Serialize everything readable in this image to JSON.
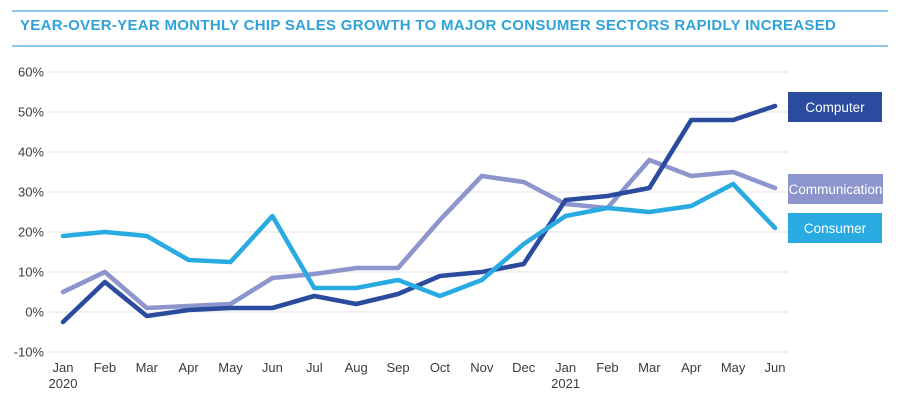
{
  "header": {
    "title": "YEAR-OVER-YEAR MONTHLY CHIP SALES GROWTH TO MAJOR CONSUMER SECTORS RAPIDLY INCREASED"
  },
  "chart_data": {
    "type": "line",
    "title": "YEAR-OVER-YEAR MONTHLY CHIP SALES GROWTH TO MAJOR CONSUMER SECTORS RAPIDLY INCREASED",
    "x_tick_labels": [
      "Jan",
      "Feb",
      "Mar",
      "Apr",
      "May",
      "Jun",
      "Jul",
      "Aug",
      "Sep",
      "Oct",
      "Nov",
      "Dec",
      "Jan",
      "Feb",
      "Mar",
      "Apr",
      "May",
      "Jun"
    ],
    "year_labels": [
      {
        "index": 0,
        "label": "2020"
      },
      {
        "index": 12,
        "label": "2021"
      }
    ],
    "series": [
      {
        "name": "Computer",
        "color": "#2b4b9f",
        "values": [
          -2.5,
          7.5,
          -1,
          0.5,
          1,
          1,
          4,
          2,
          4.5,
          9,
          10,
          12,
          28,
          29,
          31,
          48,
          48,
          51.5
        ]
      },
      {
        "name": "Communication",
        "color": "#8d96cc",
        "values": [
          5,
          10,
          1,
          1.5,
          2,
          8.5,
          9.5,
          11,
          11,
          23,
          34,
          32.5,
          27,
          26,
          38,
          34,
          35,
          31
        ]
      },
      {
        "name": "Consumer",
        "color": "#29abe2",
        "values": [
          19,
          20,
          19,
          13,
          12.5,
          24,
          6,
          6,
          8,
          4,
          8,
          17,
          24,
          26,
          25,
          26.5,
          32,
          21
        ]
      }
    ],
    "draw_order": [
      1,
      0,
      2
    ],
    "ylim": [
      -10,
      60
    ],
    "y_ticks": [
      60,
      50,
      40,
      30,
      20,
      10,
      0,
      -10
    ],
    "y_tick_suffix": "%",
    "grid": "horizontal",
    "legend_position": "right"
  },
  "colors": {
    "title": "#2fa3d9",
    "rule": "#8fc8ea",
    "gridline": "#e8e8e8",
    "axis_text": "#3c3c3c",
    "background": "#ffffff"
  }
}
